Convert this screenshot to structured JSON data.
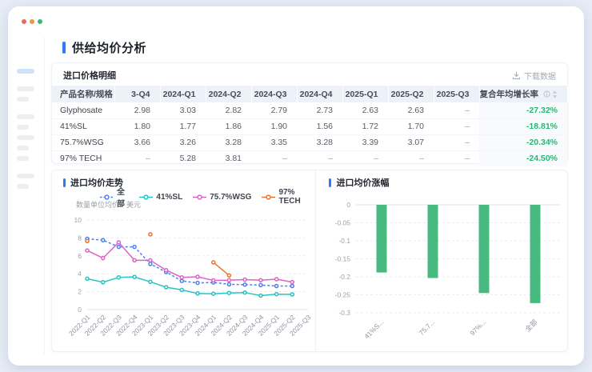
{
  "page": {
    "title": "供给均价分析"
  },
  "colors": {
    "accent_blue": "#2e7cf5",
    "cagr_green": "#2bb573",
    "traffic_red": "#ec6a52",
    "traffic_yellow": "#f0963f",
    "traffic_green": "#3bb778"
  },
  "table_card": {
    "title": "进口价格明细",
    "download_label": "下载数据",
    "columns": [
      "产品名称/规格",
      "3-Q4",
      "2024-Q1",
      "2024-Q2",
      "2024-Q3",
      "2024-Q4",
      "2025-Q1",
      "2025-Q2",
      "2025-Q3",
      "复合年均增长率"
    ],
    "rows": [
      {
        "name": "Glyphosate",
        "values": [
          "2.98",
          "3.03",
          "2.82",
          "2.79",
          "2.73",
          "2.63",
          "2.63",
          "–"
        ],
        "cagr": "-27.32%"
      },
      {
        "name": "41%SL",
        "values": [
          "1.80",
          "1.77",
          "1.86",
          "1.90",
          "1.56",
          "1.72",
          "1.70",
          "–"
        ],
        "cagr": "-18.81%"
      },
      {
        "name": "75.7%WSG",
        "values": [
          "3.66",
          "3.26",
          "3.28",
          "3.35",
          "3.28",
          "3.39",
          "3.07",
          "–"
        ],
        "cagr": "-20.34%"
      },
      {
        "name": "97% TECH",
        "values": [
          "–",
          "5.28",
          "3.81",
          "–",
          "–",
          "–",
          "–",
          "–"
        ],
        "cagr": "-24.50%"
      }
    ]
  },
  "chart_data": [
    {
      "type": "line",
      "title": "进口均价走势",
      "ylabel": "数量单位均价：美元",
      "x": [
        "2022-Q1",
        "2022-Q2",
        "2022-Q3",
        "2022-Q4",
        "2023-Q1",
        "2023-Q2",
        "2023-Q3",
        "2023-Q4",
        "2024-Q1",
        "2024-Q2",
        "2024-Q3",
        "2024-Q4",
        "2025-Q1",
        "2025-Q2",
        "2025-Q3"
      ],
      "ylim": [
        0,
        10
      ],
      "yticks": [
        0,
        2,
        4,
        6,
        8,
        10
      ],
      "grid": true,
      "legend_position": "top",
      "series": [
        {
          "name": "全部",
          "color": "#4d7ef2",
          "style": "dashed",
          "values": [
            7.9,
            7.75,
            7.0,
            7.0,
            5.1,
            4.2,
            3.2,
            2.98,
            3.03,
            2.82,
            2.79,
            2.73,
            2.63,
            2.63,
            null
          ]
        },
        {
          "name": "41%SL",
          "color": "#27c5bf",
          "style": "solid",
          "values": [
            3.45,
            3.05,
            3.6,
            3.65,
            3.1,
            2.5,
            2.2,
            1.8,
            1.77,
            1.86,
            1.9,
            1.56,
            1.72,
            1.7,
            null
          ]
        },
        {
          "name": "75.7%WSG",
          "color": "#dc63c6",
          "style": "solid",
          "values": [
            6.6,
            5.75,
            7.5,
            5.5,
            5.5,
            4.4,
            3.6,
            3.66,
            3.26,
            3.28,
            3.35,
            3.28,
            3.39,
            3.07,
            null
          ]
        },
        {
          "name": "97% TECH",
          "color": "#e6762e",
          "style": "solid",
          "values": [
            7.65,
            null,
            null,
            null,
            8.4,
            null,
            null,
            null,
            5.28,
            3.81,
            null,
            null,
            null,
            null,
            null
          ]
        }
      ]
    },
    {
      "type": "bar",
      "title": "进口均价涨幅",
      "categories": [
        "41%S...",
        "75.7...",
        "97%...",
        "全部"
      ],
      "values": [
        -0.1881,
        -0.2034,
        -0.245,
        -0.2732
      ],
      "bar_color": "#48ba7f",
      "ylim": [
        -0.3,
        0
      ],
      "yticks": [
        0,
        -0.05,
        -0.1,
        -0.15,
        -0.2,
        -0.25,
        -0.3
      ],
      "grid": true
    }
  ]
}
